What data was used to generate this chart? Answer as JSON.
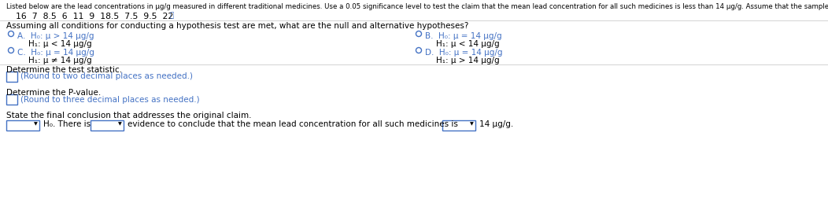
{
  "title_text": "Listed below are the lead concentrations in μg/g measured in different traditional medicines. Use a 0.05 significance level to test the claim that the mean lead concentration for all such medicines is less than 14 μg/g. Assume that the sample is a simple random sample.",
  "data_values": "16  7  8.5  6  11  9  18.5  7.5  9.5  22",
  "question1": "Assuming all conditions for conducting a hypothesis test are met, what are the null and alternative hypotheses?",
  "optA_label": "A.",
  "optA_h0": "H₀: μ > 14 μg/g",
  "optA_h1": "H₁: μ < 14 μg/g",
  "optB_label": "B.",
  "optB_h0": "H₀: μ = 14 μg/g",
  "optB_h1": "H₁: μ < 14 μg/g",
  "optC_label": "C.",
  "optC_h0": "H₀: μ = 14 μg/g",
  "optC_h1": "H₁: μ ≠ 14 μg/g",
  "optD_label": "D.",
  "optD_h0": "H₀: μ = 14 μg/g",
  "optD_h1": "H₁: μ > 14 μg/g",
  "det_stat": "Determine the test statistic.",
  "round2": "(Round to two decimal places as needed.)",
  "det_pval": "Determine the P-value.",
  "round3": "(Round to three decimal places as needed.)",
  "state_conc": "State the final conclusion that addresses the original claim.",
  "conclusion_text": "evidence to conclude that the mean lead concentration for all such medicines is",
  "end_text": "14 μg/g.",
  "h0_there": "H₀. There is",
  "bg_color": "#ffffff",
  "text_color": "#000000",
  "blue_color": "#4472c4",
  "sep_color": "#cccccc",
  "title_fontsize": 6.2,
  "data_fontsize": 7.8,
  "body_fontsize": 7.5,
  "small_fontsize": 7.2,
  "option_fontsize": 7.5
}
